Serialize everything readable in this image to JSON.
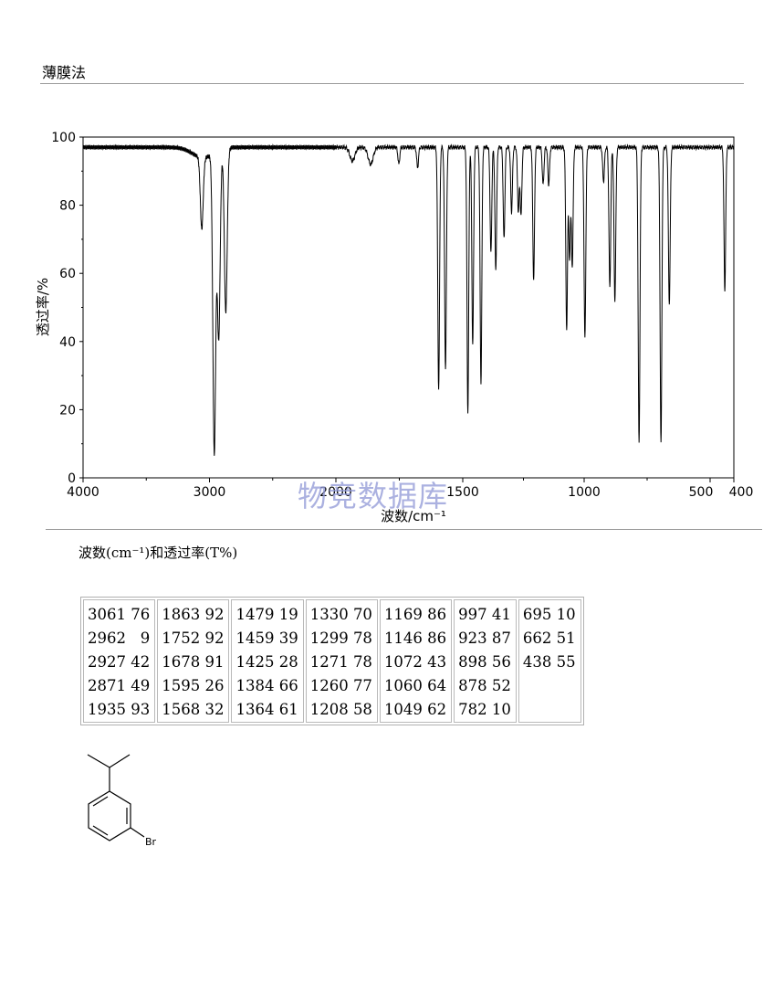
{
  "header": {
    "method": "薄膜法"
  },
  "watermark": "物竞数据库",
  "table": {
    "caption": "波数(cm⁻¹)和透过率(T%)",
    "columns": [
      [
        "3061 76",
        "2962   9",
        "2927 42",
        "2871 49",
        "1935 93"
      ],
      [
        "1863 92",
        "1752 92",
        "1678 91",
        "1595 26",
        "1568 32"
      ],
      [
        "1479 19",
        "1459 39",
        "1425 28",
        "1384 66",
        "1364 61"
      ],
      [
        "1330 70",
        "1299 78",
        "1271 78",
        "1260 77",
        "1208 58"
      ],
      [
        "1169 86",
        "1146 86",
        "1072 43",
        "1060 64",
        "1049 62"
      ],
      [
        "997 41",
        "923 87",
        "898 56",
        "878 52",
        "782 10"
      ],
      [
        "695 10",
        "662 51",
        "438 55",
        "",
        ""
      ]
    ]
  },
  "structure": {
    "substituent_label": "Br"
  },
  "chart_data": {
    "type": "line",
    "xlabel": "波数/cm⁻¹",
    "ylabel": "透过率/%",
    "xlim": [
      4000,
      400
    ],
    "ylim": [
      0,
      100
    ],
    "x_ticks": [
      4000,
      3000,
      2000,
      1500,
      1000,
      500,
      400
    ],
    "y_ticks": [
      0,
      20,
      40,
      60,
      80,
      100
    ],
    "grid": false,
    "baseline": 97,
    "series": [
      {
        "peaks": [
          {
            "x": 3061,
            "y": 76
          },
          {
            "x": 2962,
            "y": 9
          },
          {
            "x": 2927,
            "y": 42
          },
          {
            "x": 2871,
            "y": 49
          },
          {
            "x": 1935,
            "y": 93
          },
          {
            "x": 1863,
            "y": 92
          },
          {
            "x": 1752,
            "y": 92
          },
          {
            "x": 1678,
            "y": 91
          },
          {
            "x": 1595,
            "y": 26
          },
          {
            "x": 1568,
            "y": 32
          },
          {
            "x": 1479,
            "y": 19
          },
          {
            "x": 1459,
            "y": 39
          },
          {
            "x": 1425,
            "y": 28
          },
          {
            "x": 1384,
            "y": 66
          },
          {
            "x": 1364,
            "y": 61
          },
          {
            "x": 1330,
            "y": 70
          },
          {
            "x": 1299,
            "y": 78
          },
          {
            "x": 1271,
            "y": 78
          },
          {
            "x": 1260,
            "y": 77
          },
          {
            "x": 1208,
            "y": 58
          },
          {
            "x": 1169,
            "y": 86
          },
          {
            "x": 1146,
            "y": 86
          },
          {
            "x": 1072,
            "y": 43
          },
          {
            "x": 1060,
            "y": 64
          },
          {
            "x": 1049,
            "y": 62
          },
          {
            "x": 997,
            "y": 41
          },
          {
            "x": 923,
            "y": 87
          },
          {
            "x": 898,
            "y": 56
          },
          {
            "x": 878,
            "y": 52
          },
          {
            "x": 782,
            "y": 10
          },
          {
            "x": 695,
            "y": 10
          },
          {
            "x": 662,
            "y": 51
          },
          {
            "x": 438,
            "y": 55
          }
        ]
      }
    ]
  }
}
